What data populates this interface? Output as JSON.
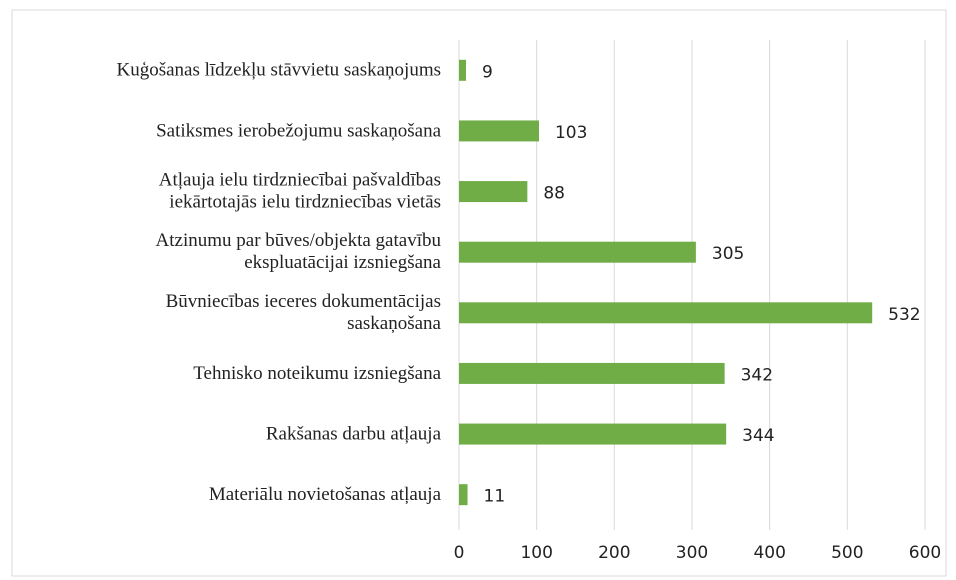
{
  "chart_data": {
    "type": "bar",
    "orientation": "horizontal",
    "categories": [
      "Kuģošanas līdzekļu stāvvietu saskaņojums",
      "Satiksmes ierobežojumu saskaņošana",
      "Atļauja ielu tirdzniecībai pašvaldības\niekārtotajās ielu tirdzniecības vietās",
      "Atzinumu par būves/objekta gatavību\nekspluatācijai izsniegšana",
      "Būvniecības ieceres dokumentācijas\nsaskaņošana",
      "Tehnisko noteikumu izsniegšana",
      "Rakšanas darbu atļauja",
      "Materiālu novietošanas atļauja"
    ],
    "values": [
      9,
      103,
      88,
      305,
      532,
      342,
      344,
      11
    ],
    "color": "#70ad47",
    "xlim": [
      0,
      600
    ],
    "xticks": [
      0,
      100,
      200,
      300,
      400,
      500,
      600
    ],
    "grid": true
  }
}
